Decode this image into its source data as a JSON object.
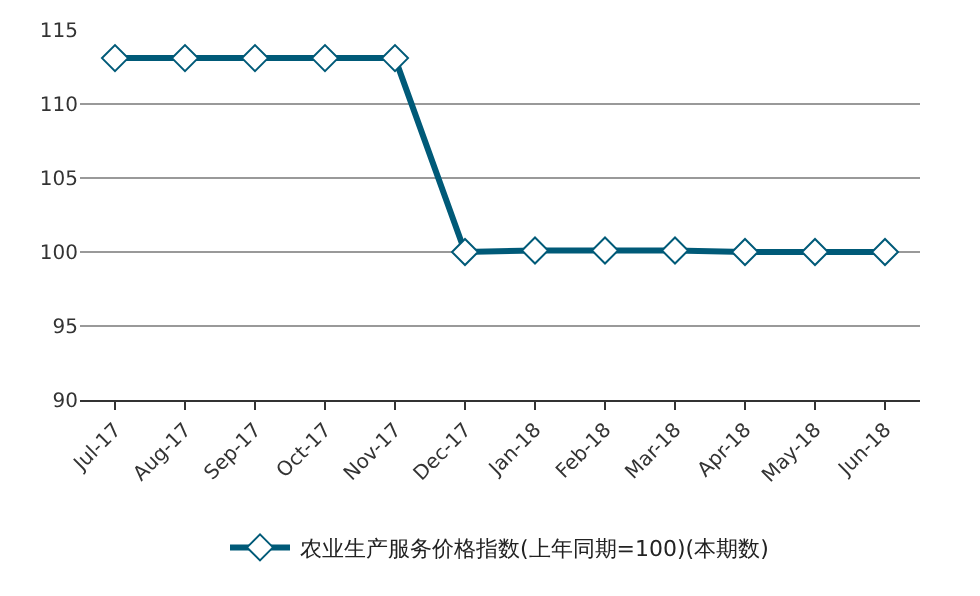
{
  "chart_data": {
    "type": "line",
    "categories": [
      "Jul-17",
      "Aug-17",
      "Sep-17",
      "Oct-17",
      "Nov-17",
      "Dec-17",
      "Jan-18",
      "Feb-18",
      "Mar-18",
      "Apr-18",
      "May-18",
      "Jun-18"
    ],
    "series": [
      {
        "name": "农业生产服务价格指数(上年同期=100)(本期数)",
        "color": "#005a78",
        "values": [
          113.1,
          113.1,
          113.1,
          113.1,
          113.1,
          100.0,
          100.1,
          100.1,
          100.1,
          100.0,
          100.0,
          100.0
        ]
      }
    ],
    "ylim": [
      90,
      115
    ],
    "yticks": [
      90,
      95,
      100,
      105,
      110,
      115
    ],
    "grid": "y",
    "legend": "bottom",
    "marker": "diamond",
    "line_style": "solid"
  }
}
